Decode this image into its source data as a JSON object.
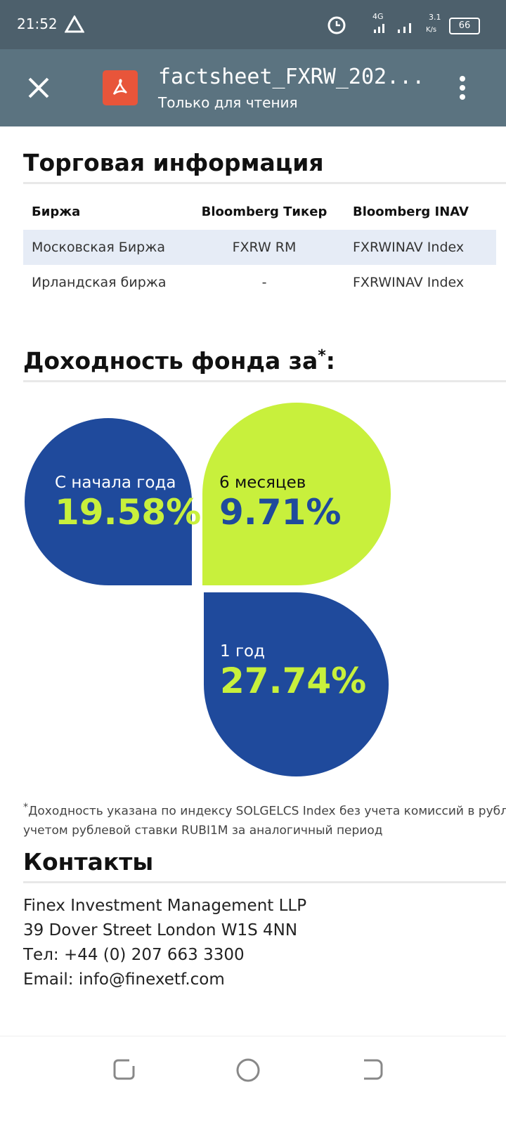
{
  "status_bar": {
    "time": "21:52",
    "network": "4G",
    "speed": "3.1",
    "speed_unit": "K/s",
    "battery": "66"
  },
  "app_bar": {
    "title": "factsheet_FXRW_202...",
    "subtitle": "Только для чтения"
  },
  "trading": {
    "title": "Торговая информация",
    "header": [
      "Биржа",
      "Bloomberg Тикер",
      "Bloomberg INAV"
    ],
    "rows": [
      [
        "Московская Биржа",
        "FXRW RM",
        "FXRWINAV Index"
      ],
      [
        "Ирландская биржа",
        "-",
        "FXRWINAV Index"
      ]
    ]
  },
  "returns": {
    "title": "Доходность фонда за",
    "title_mark": "*",
    "title_suffix": ":",
    "items": [
      {
        "label": "С начала года",
        "value": "19.58%"
      },
      {
        "label": "6 месяцев",
        "value": "9.71%"
      },
      {
        "label": "1 год",
        "value": "27.74%"
      }
    ]
  },
  "footnote": {
    "mark": "*",
    "line1": "Доходность указана по индексу SOLGELCS Index без учета комиссий в рублях",
    "line2": "учетом рублевой ставки RUBI1M за аналогичный период"
  },
  "contacts": {
    "title": "Контакты",
    "lines": [
      "Finex Investment Management LLP",
      "39 Dover Street London W1S 4NN",
      "Тел: +44 (0) 207 663 3300",
      "Email: info@finexetf.com"
    ]
  }
}
